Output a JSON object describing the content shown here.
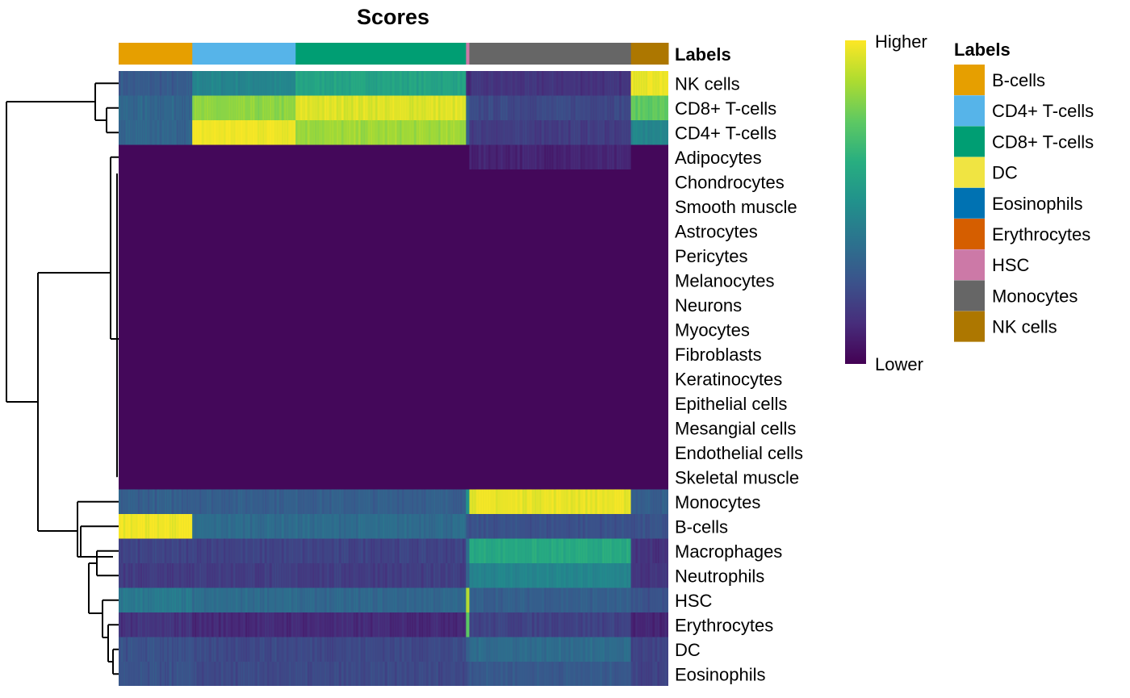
{
  "chart_data": {
    "type": "heatmap",
    "title": "Scores",
    "annotation_title": "Labels",
    "scale_high_label": "Higher",
    "scale_low_label": "Lower",
    "palette": [
      "#440154",
      "#472d7b",
      "#3b528b",
      "#2c728e",
      "#21918c",
      "#28ae80",
      "#5ec962",
      "#addc30",
      "#fde725"
    ],
    "legend_entries": [
      {
        "label": "B-cells",
        "color": "#E69F00"
      },
      {
        "label": "CD4+ T-cells",
        "color": "#56B4E9"
      },
      {
        "label": "CD8+ T-cells",
        "color": "#009E73"
      },
      {
        "label": "DC",
        "color": "#F0E442"
      },
      {
        "label": "Eosinophils",
        "color": "#0072B2"
      },
      {
        "label": "Erythrocytes",
        "color": "#D55E00"
      },
      {
        "label": "HSC",
        "color": "#CC79A7"
      },
      {
        "label": "Monocytes",
        "color": "#666666"
      },
      {
        "label": "NK cells",
        "color": "#AD7700"
      }
    ],
    "column_groups": [
      {
        "label": "B-cells",
        "fraction": 0.134
      },
      {
        "label": "CD4+ T-cells",
        "fraction": 0.188
      },
      {
        "label": "CD8+ T-cells",
        "fraction": 0.31
      },
      {
        "label": "HSC",
        "fraction": 0.006
      },
      {
        "label": "Monocytes",
        "fraction": 0.294
      },
      {
        "label": "NK cells",
        "fraction": 0.068
      }
    ],
    "rows": [
      {
        "label": "NK cells",
        "scores": [
          0.28,
          0.45,
          0.58,
          0.1,
          0.15,
          0.98
        ]
      },
      {
        "label": "CD8+ T-cells",
        "scores": [
          0.33,
          0.82,
          0.95,
          0.3,
          0.22,
          0.75
        ]
      },
      {
        "label": "CD4+ T-cells",
        "scores": [
          0.32,
          0.98,
          0.85,
          0.3,
          0.18,
          0.45
        ]
      },
      {
        "label": "Adipocytes",
        "scores": [
          0.02,
          0.02,
          0.02,
          0.02,
          0.1,
          0.02
        ]
      },
      {
        "label": "Chondrocytes",
        "scores": [
          0.02,
          0.02,
          0.02,
          0.02,
          0.02,
          0.02
        ]
      },
      {
        "label": "Smooth muscle",
        "scores": [
          0.02,
          0.02,
          0.02,
          0.02,
          0.02,
          0.02
        ]
      },
      {
        "label": "Astrocytes",
        "scores": [
          0.02,
          0.02,
          0.02,
          0.02,
          0.02,
          0.02
        ]
      },
      {
        "label": "Pericytes",
        "scores": [
          0.02,
          0.02,
          0.02,
          0.02,
          0.02,
          0.02
        ]
      },
      {
        "label": "Melanocytes",
        "scores": [
          0.02,
          0.02,
          0.02,
          0.02,
          0.02,
          0.02
        ]
      },
      {
        "label": "Neurons",
        "scores": [
          0.02,
          0.02,
          0.02,
          0.02,
          0.02,
          0.02
        ]
      },
      {
        "label": "Myocytes",
        "scores": [
          0.02,
          0.02,
          0.02,
          0.02,
          0.02,
          0.02
        ]
      },
      {
        "label": "Fibroblasts",
        "scores": [
          0.02,
          0.02,
          0.02,
          0.02,
          0.02,
          0.02
        ]
      },
      {
        "label": "Keratinocytes",
        "scores": [
          0.02,
          0.02,
          0.02,
          0.02,
          0.02,
          0.02
        ]
      },
      {
        "label": "Epithelial cells",
        "scores": [
          0.02,
          0.02,
          0.02,
          0.02,
          0.02,
          0.02
        ]
      },
      {
        "label": "Mesangial cells",
        "scores": [
          0.02,
          0.02,
          0.02,
          0.02,
          0.02,
          0.02
        ]
      },
      {
        "label": "Endothelial cells",
        "scores": [
          0.02,
          0.02,
          0.02,
          0.02,
          0.02,
          0.02
        ]
      },
      {
        "label": "Skeletal muscle",
        "scores": [
          0.02,
          0.02,
          0.02,
          0.02,
          0.02,
          0.02
        ]
      },
      {
        "label": "Monocytes",
        "scores": [
          0.3,
          0.3,
          0.3,
          0.5,
          0.97,
          0.3
        ]
      },
      {
        "label": "B-cells",
        "scores": [
          0.98,
          0.35,
          0.35,
          0.25,
          0.25,
          0.25
        ]
      },
      {
        "label": "Macrophages",
        "scores": [
          0.2,
          0.2,
          0.2,
          0.35,
          0.6,
          0.15
        ]
      },
      {
        "label": "Neutrophils",
        "scores": [
          0.18,
          0.18,
          0.18,
          0.3,
          0.45,
          0.15
        ]
      },
      {
        "label": "HSC",
        "scores": [
          0.4,
          0.35,
          0.33,
          0.9,
          0.3,
          0.25
        ]
      },
      {
        "label": "Erythrocytes",
        "scores": [
          0.15,
          0.12,
          0.12,
          0.75,
          0.2,
          0.1
        ]
      },
      {
        "label": "DC",
        "scores": [
          0.25,
          0.22,
          0.22,
          0.3,
          0.35,
          0.2
        ]
      },
      {
        "label": "Eosinophils",
        "scores": [
          0.25,
          0.22,
          0.22,
          0.25,
          0.28,
          0.2
        ]
      }
    ]
  }
}
